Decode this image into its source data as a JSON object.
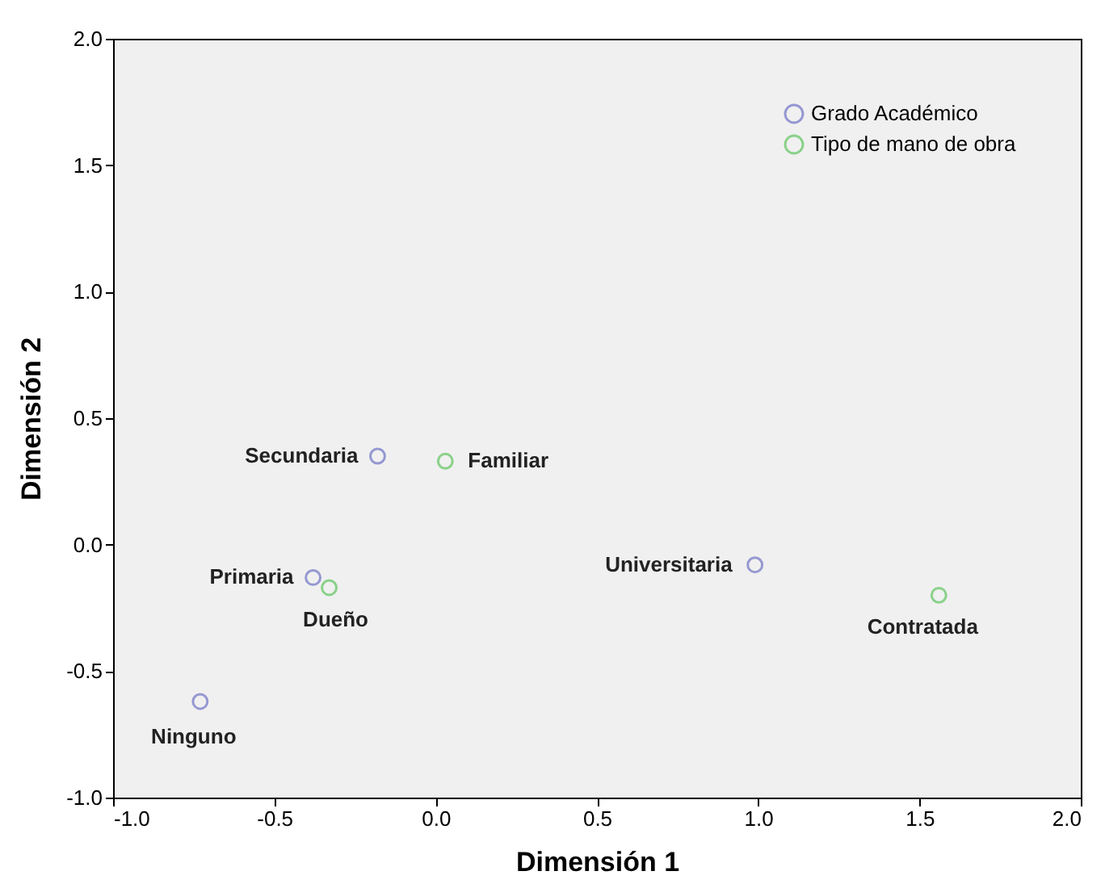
{
  "chart_data": {
    "type": "scatter",
    "xlabel": "Dimensión 1",
    "ylabel": "Dimensión 2",
    "xlim": [
      -1,
      2
    ],
    "ylim": [
      -1,
      2
    ],
    "xticks": [
      {
        "value": -1,
        "label": "-1.0"
      },
      {
        "value": -0.5,
        "label": "-0.5"
      },
      {
        "value": 0,
        "label": "0.0"
      },
      {
        "value": 0.5,
        "label": "0.5"
      },
      {
        "value": 1,
        "label": "1.0"
      },
      {
        "value": 1.5,
        "label": "1.5"
      },
      {
        "value": 2,
        "label": "2.0"
      }
    ],
    "yticks": [
      {
        "value": -1,
        "label": "-1.0"
      },
      {
        "value": -0.5,
        "label": "-0.5"
      },
      {
        "value": 0,
        "label": "0.0"
      },
      {
        "value": 0.5,
        "label": "0.5"
      },
      {
        "value": 1,
        "label": "1.0"
      },
      {
        "value": 1.5,
        "label": "1.5"
      },
      {
        "value": 2,
        "label": "2.0"
      }
    ],
    "series": [
      {
        "name": "Grado Académico",
        "color": "#6f74c4",
        "x": [
          -0.18,
          -0.38,
          0.99,
          -0.73
        ],
        "values": [
          0.35,
          -0.13,
          -0.08,
          -0.62
        ]
      },
      {
        "name": "Tipo de mano de obra",
        "color": "#5fc45f",
        "x": [
          0.03,
          -0.33,
          1.56
        ],
        "values": [
          0.33,
          -0.17,
          -0.2
        ]
      }
    ],
    "annotations": [
      {
        "text": "Secundaria",
        "x": -0.18,
        "y": 0.35
      },
      {
        "text": "Familiar",
        "x": 0.03,
        "y": 0.33
      },
      {
        "text": "Primaria",
        "x": -0.38,
        "y": -0.13
      },
      {
        "text": "Dueño",
        "x": -0.33,
        "y": -0.17
      },
      {
        "text": "Universitaria",
        "x": 0.99,
        "y": -0.08
      },
      {
        "text": "Contratada",
        "x": 1.56,
        "y": -0.2
      },
      {
        "text": "Ninguno",
        "x": -0.73,
        "y": -0.62
      }
    ],
    "marker": "circle",
    "grid": false,
    "legend": "top right"
  }
}
